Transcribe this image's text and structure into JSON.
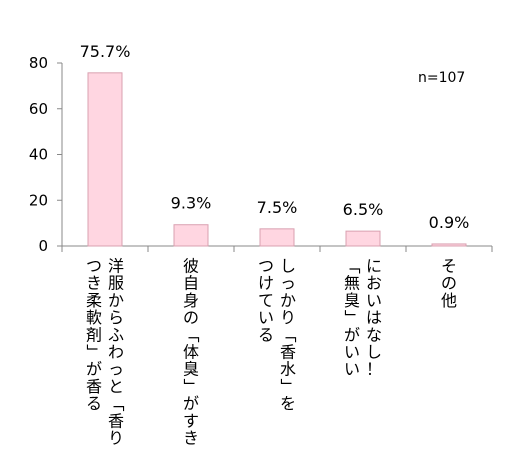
{
  "chart_data": {
    "type": "bar",
    "categories": [
      [
        "洋服からふわっと「香り",
        "つき柔軟剤」が香る"
      ],
      [
        "彼自身の「体臭」がすき"
      ],
      [
        "しっかり「香水」を",
        "つけている"
      ],
      [
        "においはなし！",
        "「無臭」がいい"
      ],
      [
        "その他"
      ]
    ],
    "values": [
      75.7,
      9.3,
      7.5,
      6.5,
      0.9
    ],
    "data_labels": [
      "75.7%",
      "9.3%",
      "7.5%",
      "6.5%",
      "0.9%"
    ],
    "yticks": [
      "0",
      "20",
      "40",
      "60",
      "80"
    ],
    "ylim": [
      0,
      80
    ],
    "grid": false,
    "note": "n=107",
    "colors": {
      "bar_fill": "#ffd6e1",
      "bar_stroke": "#d9a0b0",
      "axis": "#888888"
    }
  }
}
